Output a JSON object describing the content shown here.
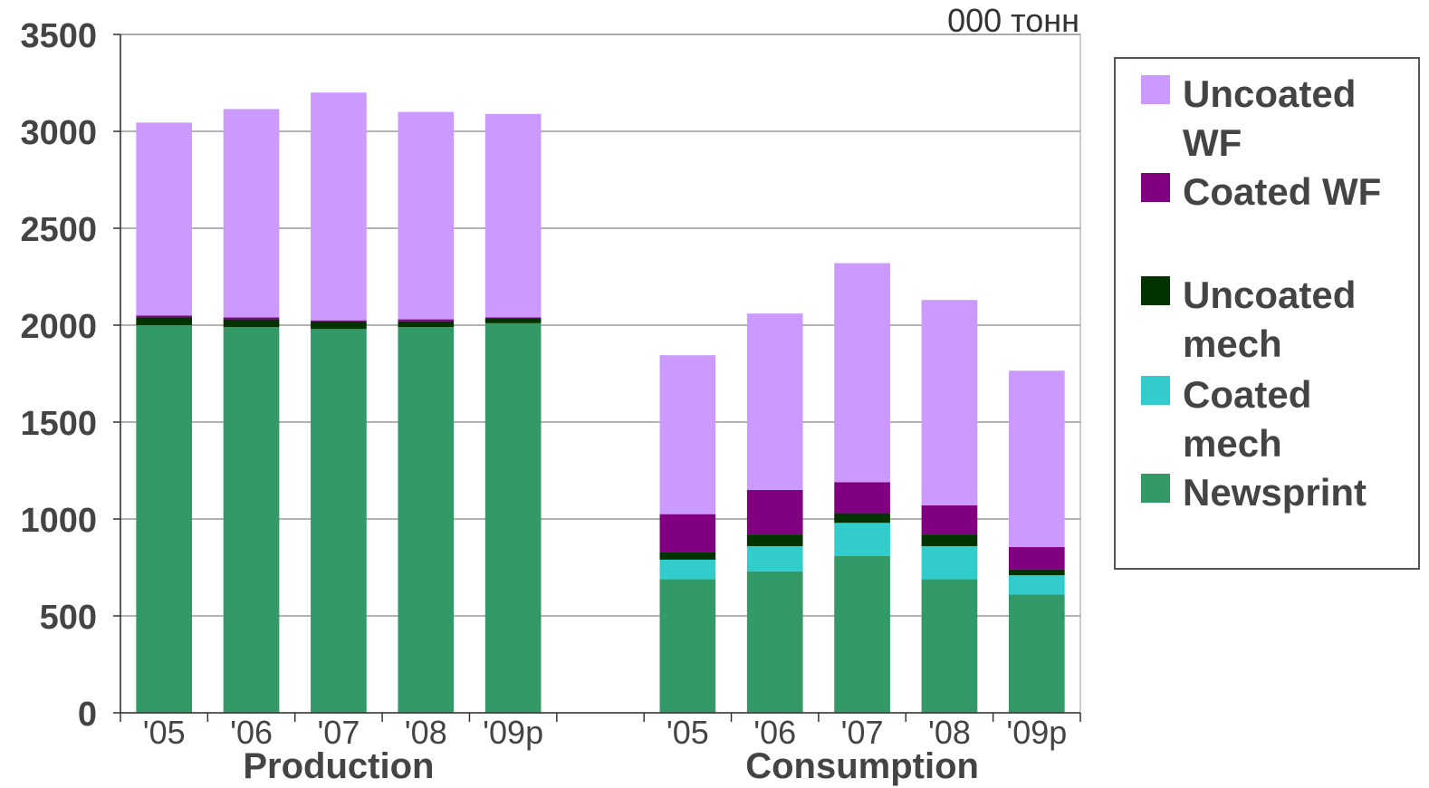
{
  "chart_data": {
    "type": "bar",
    "stacked": true,
    "unit_label": "000 тонн",
    "ylim": [
      0,
      3500
    ],
    "yticks": [
      0,
      500,
      1000,
      1500,
      2000,
      2500,
      3000,
      3500
    ],
    "grid": true,
    "legend_position": "right",
    "groups": [
      {
        "name": "Production",
        "categories": [
          "'05",
          "'06",
          "'07",
          "'08",
          "'09p"
        ]
      },
      {
        "name": "Consumption",
        "categories": [
          "'05",
          "'06",
          "'07",
          "'08",
          "'09p"
        ]
      }
    ],
    "series": [
      {
        "name": "Newsprint",
        "color": "#339966",
        "values": [
          2000,
          1990,
          1980,
          1990,
          2010,
          690,
          730,
          810,
          690,
          610
        ]
      },
      {
        "name": "Coated mech",
        "color": "#33CCCC",
        "values": [
          0,
          0,
          0,
          0,
          0,
          100,
          130,
          170,
          170,
          100
        ]
      },
      {
        "name": "Uncoated mech",
        "color": "#003300",
        "values": [
          40,
          40,
          40,
          30,
          25,
          40,
          60,
          50,
          60,
          30
        ]
      },
      {
        "name": "Coated WF",
        "color": "#800080",
        "values": [
          10,
          10,
          5,
          10,
          5,
          195,
          230,
          160,
          150,
          115
        ]
      },
      {
        "name": "Uncoated WF",
        "color": "#CC99FF",
        "values": [
          995,
          1075,
          1175,
          1070,
          1050,
          820,
          910,
          1130,
          1060,
          910
        ]
      }
    ]
  },
  "legend": {
    "items": [
      {
        "label": "Uncoated WF",
        "color": "#CC99FF"
      },
      {
        "label": "Coated WF",
        "color": "#800080"
      },
      {
        "label": "Uncoated mech",
        "color": "#003300"
      },
      {
        "label": "Coated mech",
        "color": "#33CCCC"
      },
      {
        "label": "Newsprint",
        "color": "#339966"
      }
    ]
  }
}
